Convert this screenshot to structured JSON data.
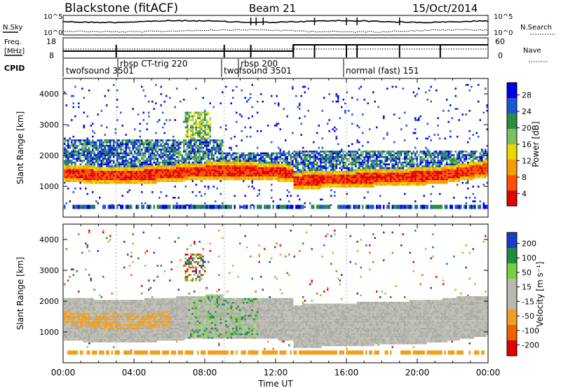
{
  "header": {
    "radar": "Blackstone (fitACF)",
    "beam": "Beam 21",
    "date": "15/Oct/2014"
  },
  "noise": {
    "left_label": "N.Sky",
    "right_label": "N.Search",
    "tick_top": "10^5",
    "tick_bottom": "10^0"
  },
  "freq": {
    "left_label_1": "Freq.",
    "left_label_2": "[MHz]",
    "right_label": "Nave",
    "left_ticks": [
      "18",
      "8"
    ],
    "right_ticks": [
      "60",
      "0"
    ]
  },
  "cpid": {
    "label": "CPID",
    "segments": [
      {
        "text": "twofsound 3501"
      },
      {
        "text": "rbsp CT-trig 220"
      },
      {
        "text": "rbsp 200"
      },
      {
        "text": "twofsound 3501"
      },
      {
        "text": "normal (fast) 151"
      }
    ]
  },
  "chart_data": [
    {
      "type": "heatmap",
      "title": "",
      "xlabel": "",
      "ylabel": "Slant Range [km]",
      "xlim": [
        "00:00",
        "24:00"
      ],
      "ylim": [
        0,
        4500
      ],
      "yticks": [
        1000,
        2000,
        3000,
        4000
      ],
      "colorbar": {
        "label": "Power [dB]",
        "ticks": [
          4,
          8,
          12,
          16,
          20,
          24,
          28
        ],
        "colors": [
          "#0000e8",
          "#1c56d4",
          "#2c8c46",
          "#7cc060",
          "#e8d800",
          "#f29c00",
          "#ff5000",
          "#e00000"
        ]
      },
      "bands": [
        {
          "x_start_h": 0,
          "x_end_h": 13,
          "range_km": [
            1100,
            1700
          ],
          "level": "strong"
        },
        {
          "x_start_h": 13,
          "x_end_h": 24,
          "range_km": [
            900,
            1500
          ],
          "level": "strong"
        },
        {
          "x_start_h": 0,
          "x_end_h": 9,
          "range_km": [
            1700,
            2600
          ],
          "level": "moderate"
        },
        {
          "x_start_h": 7,
          "x_end_h": 8,
          "range_km": [
            2600,
            3400
          ],
          "level": "moderate"
        }
      ]
    },
    {
      "type": "heatmap",
      "title": "",
      "xlabel": "Time UT",
      "ylabel": "Slant Range [km]",
      "xlim": [
        "00:00",
        "24:00"
      ],
      "ylim": [
        0,
        4500
      ],
      "yticks": [
        1000,
        2000,
        3000,
        4000
      ],
      "xticks": [
        "00:00",
        "04:00",
        "08:00",
        "12:00",
        "16:00",
        "20:00",
        "00:00"
      ],
      "colorbar": {
        "label": "Velocity [m s⁻¹]",
        "ticks": [
          200,
          100,
          50,
          15,
          -15,
          -50,
          -100,
          -200
        ],
        "colors": [
          "#1a3cc8",
          "#1e8c3c",
          "#78d040",
          "#b8b8b0",
          "#b8b8b0",
          "#f0a020",
          "#f06000",
          "#e00000"
        ]
      },
      "bands": [
        {
          "x_start_h": 0,
          "x_end_h": 24,
          "range_km": [
            1000,
            2300
          ],
          "value": "near zero (gray)"
        },
        {
          "x_start_h": 0,
          "x_end_h": 6,
          "range_km": [
            1100,
            1700
          ],
          "value": "-15 to -50"
        },
        {
          "x_start_h": 0,
          "x_end_h": 24,
          "range_km": [
            100,
            400
          ],
          "value": "-15 to -50"
        }
      ]
    }
  ]
}
